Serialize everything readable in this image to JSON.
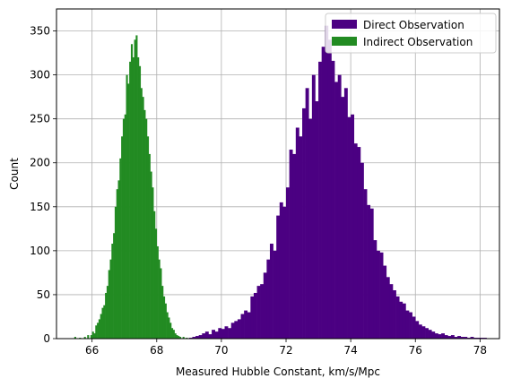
{
  "chart_data": {
    "type": "bar",
    "xlabel": "Measured Hubble Constant, km/s/Mpc",
    "ylabel": "Count",
    "xlim": [
      64.9,
      78.6
    ],
    "ylim": [
      0,
      375
    ],
    "xticks": [
      66,
      68,
      70,
      72,
      74,
      76,
      78
    ],
    "yticks": [
      0,
      50,
      100,
      150,
      200,
      250,
      300,
      350
    ],
    "grid": true,
    "legend_position": "upper-right",
    "series": [
      {
        "name": "Direct Observation",
        "color": "#4b0082",
        "bin_width": 0.1,
        "bins": [
          [
            69.0,
            1
          ],
          [
            69.1,
            2
          ],
          [
            69.2,
            3
          ],
          [
            69.3,
            4
          ],
          [
            69.4,
            6
          ],
          [
            69.5,
            8
          ],
          [
            69.6,
            5
          ],
          [
            69.7,
            10
          ],
          [
            69.8,
            8
          ],
          [
            69.9,
            12
          ],
          [
            70.0,
            11
          ],
          [
            70.1,
            14
          ],
          [
            70.2,
            12
          ],
          [
            70.3,
            18
          ],
          [
            70.4,
            20
          ],
          [
            70.5,
            22
          ],
          [
            70.6,
            28
          ],
          [
            70.7,
            32
          ],
          [
            70.8,
            30
          ],
          [
            70.9,
            48
          ],
          [
            71.0,
            52
          ],
          [
            71.1,
            60
          ],
          [
            71.2,
            62
          ],
          [
            71.3,
            75
          ],
          [
            71.4,
            90
          ],
          [
            71.5,
            108
          ],
          [
            71.6,
            100
          ],
          [
            71.7,
            140
          ],
          [
            71.8,
            155
          ],
          [
            71.9,
            150
          ],
          [
            72.0,
            172
          ],
          [
            72.1,
            215
          ],
          [
            72.2,
            210
          ],
          [
            72.3,
            240
          ],
          [
            72.4,
            230
          ],
          [
            72.5,
            262
          ],
          [
            72.6,
            285
          ],
          [
            72.7,
            250
          ],
          [
            72.8,
            300
          ],
          [
            72.9,
            270
          ],
          [
            73.0,
            315
          ],
          [
            73.1,
            332
          ],
          [
            73.2,
            356
          ],
          [
            73.3,
            340
          ],
          [
            73.4,
            316
          ],
          [
            73.5,
            292
          ],
          [
            73.6,
            300
          ],
          [
            73.7,
            275
          ],
          [
            73.8,
            285
          ],
          [
            73.9,
            252
          ],
          [
            74.0,
            255
          ],
          [
            74.1,
            222
          ],
          [
            74.2,
            218
          ],
          [
            74.3,
            200
          ],
          [
            74.4,
            170
          ],
          [
            74.5,
            152
          ],
          [
            74.6,
            148
          ],
          [
            74.7,
            112
          ],
          [
            74.8,
            100
          ],
          [
            74.9,
            98
          ],
          [
            75.0,
            83
          ],
          [
            75.1,
            70
          ],
          [
            75.2,
            62
          ],
          [
            75.3,
            55
          ],
          [
            75.4,
            48
          ],
          [
            75.5,
            42
          ],
          [
            75.6,
            40
          ],
          [
            75.7,
            32
          ],
          [
            75.8,
            30
          ],
          [
            75.9,
            25
          ],
          [
            76.0,
            20
          ],
          [
            76.1,
            16
          ],
          [
            76.2,
            14
          ],
          [
            76.3,
            12
          ],
          [
            76.4,
            10
          ],
          [
            76.5,
            8
          ],
          [
            76.6,
            6
          ],
          [
            76.7,
            5
          ],
          [
            76.8,
            6
          ],
          [
            76.9,
            4
          ],
          [
            77.0,
            3
          ],
          [
            77.1,
            4
          ],
          [
            77.2,
            2
          ],
          [
            77.3,
            3
          ],
          [
            77.4,
            2
          ],
          [
            77.5,
            2
          ],
          [
            77.6,
            1
          ],
          [
            77.7,
            2
          ],
          [
            77.8,
            1
          ],
          [
            77.9,
            1
          ],
          [
            78.0,
            1
          ],
          [
            78.1,
            1
          ]
        ]
      },
      {
        "name": "Indirect Observation",
        "color": "#228b22",
        "bin_width": 0.05,
        "bins": [
          [
            65.45,
            2
          ],
          [
            65.6,
            1
          ],
          [
            65.75,
            2
          ],
          [
            65.85,
            4
          ],
          [
            65.95,
            4
          ],
          [
            66.0,
            8
          ],
          [
            66.05,
            6
          ],
          [
            66.1,
            15
          ],
          [
            66.15,
            18
          ],
          [
            66.2,
            22
          ],
          [
            66.25,
            28
          ],
          [
            66.3,
            35
          ],
          [
            66.35,
            38
          ],
          [
            66.4,
            52
          ],
          [
            66.45,
            60
          ],
          [
            66.5,
            78
          ],
          [
            66.55,
            90
          ],
          [
            66.6,
            108
          ],
          [
            66.65,
            120
          ],
          [
            66.7,
            150
          ],
          [
            66.75,
            170
          ],
          [
            66.8,
            180
          ],
          [
            66.85,
            205
          ],
          [
            66.9,
            230
          ],
          [
            66.95,
            250
          ],
          [
            67.0,
            255
          ],
          [
            67.05,
            300
          ],
          [
            67.1,
            290
          ],
          [
            67.15,
            315
          ],
          [
            67.2,
            335
          ],
          [
            67.25,
            320
          ],
          [
            67.3,
            340
          ],
          [
            67.35,
            345
          ],
          [
            67.4,
            320
          ],
          [
            67.45,
            310
          ],
          [
            67.5,
            285
          ],
          [
            67.55,
            275
          ],
          [
            67.6,
            260
          ],
          [
            67.65,
            250
          ],
          [
            67.7,
            230
          ],
          [
            67.75,
            210
          ],
          [
            67.8,
            190
          ],
          [
            67.85,
            172
          ],
          [
            67.9,
            145
          ],
          [
            67.95,
            125
          ],
          [
            68.0,
            105
          ],
          [
            68.05,
            90
          ],
          [
            68.1,
            80
          ],
          [
            68.15,
            60
          ],
          [
            68.2,
            48
          ],
          [
            68.25,
            40
          ],
          [
            68.3,
            30
          ],
          [
            68.35,
            24
          ],
          [
            68.4,
            18
          ],
          [
            68.45,
            12
          ],
          [
            68.5,
            10
          ],
          [
            68.55,
            6
          ],
          [
            68.6,
            4
          ],
          [
            68.65,
            3
          ],
          [
            68.7,
            2
          ],
          [
            68.8,
            2
          ],
          [
            68.9,
            1
          ]
        ]
      }
    ]
  }
}
